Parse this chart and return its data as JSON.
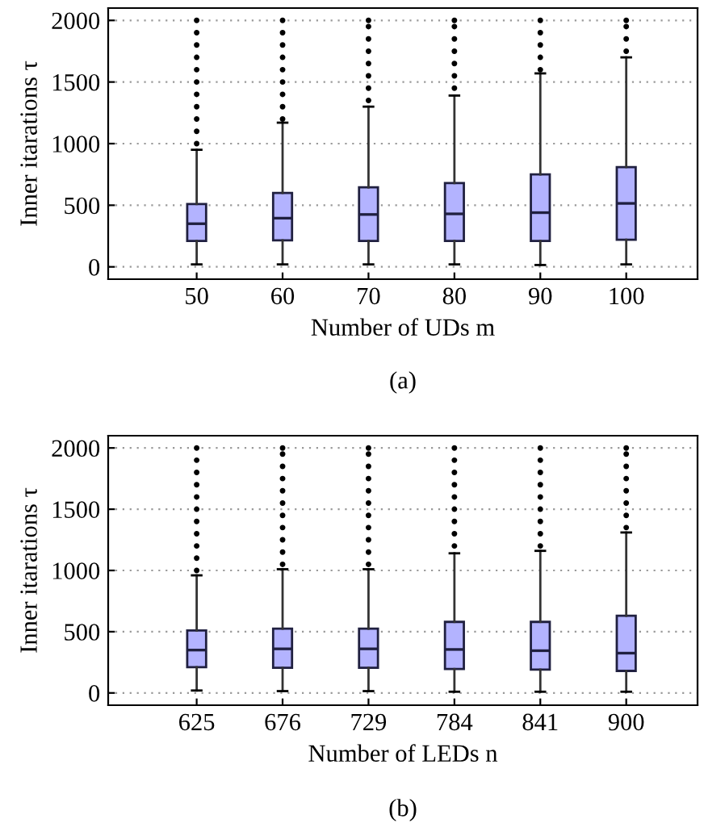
{
  "chart_data": [
    {
      "type": "box",
      "xlabel": "Number of UDs m",
      "ylabel": "Inner itarations τ",
      "annotations": [
        "(a)"
      ],
      "categories": [
        "50",
        "60",
        "70",
        "80",
        "90",
        "100"
      ],
      "color": "#b3b3ff",
      "ylim": [
        -100,
        2100
      ],
      "yticks": [
        0,
        500,
        1000,
        1500,
        2000
      ],
      "grid": "y",
      "boxes": [
        {
          "low": 20,
          "q1": 210,
          "median": 350,
          "q3": 510,
          "high": 950,
          "outliers": [
            1000,
            1100,
            1200,
            1300,
            1400,
            1500,
            1600,
            1700,
            1800,
            1900,
            2000
          ]
        },
        {
          "low": 20,
          "q1": 215,
          "median": 395,
          "q3": 600,
          "high": 1170,
          "outliers": [
            1200,
            1300,
            1400,
            1500,
            1600,
            1700,
            1800,
            1900,
            2000
          ]
        },
        {
          "low": 20,
          "q1": 210,
          "median": 425,
          "q3": 645,
          "high": 1300,
          "outliers": [
            1350,
            1450,
            1550,
            1650,
            1750,
            1850,
            1950,
            2000
          ]
        },
        {
          "low": 20,
          "q1": 210,
          "median": 430,
          "q3": 680,
          "high": 1390,
          "outliers": [
            1450,
            1550,
            1650,
            1750,
            1850,
            1950,
            2000
          ]
        },
        {
          "low": 15,
          "q1": 210,
          "median": 440,
          "q3": 750,
          "high": 1570,
          "outliers": [
            1600,
            1700,
            1800,
            1900,
            2000
          ]
        },
        {
          "low": 20,
          "q1": 220,
          "median": 515,
          "q3": 810,
          "high": 1700,
          "outliers": [
            1750,
            1850,
            1950,
            2000
          ]
        }
      ]
    },
    {
      "type": "box",
      "xlabel": "Number of LEDs n",
      "ylabel": "Inner itarations τ",
      "annotations": [
        "(b)"
      ],
      "categories": [
        "625",
        "676",
        "729",
        "784",
        "841",
        "900"
      ],
      "color": "#b3b3ff",
      "ylim": [
        -100,
        2100
      ],
      "yticks": [
        0,
        500,
        1000,
        1500,
        2000
      ],
      "grid": "y",
      "boxes": [
        {
          "low": 20,
          "q1": 210,
          "median": 350,
          "q3": 510,
          "high": 960,
          "outliers": [
            1000,
            1100,
            1200,
            1300,
            1400,
            1500,
            1600,
            1700,
            1800,
            1900,
            2000
          ]
        },
        {
          "low": 15,
          "q1": 205,
          "median": 360,
          "q3": 525,
          "high": 1010,
          "outliers": [
            1050,
            1150,
            1250,
            1350,
            1450,
            1550,
            1650,
            1750,
            1850,
            1950,
            2000
          ]
        },
        {
          "low": 15,
          "q1": 205,
          "median": 360,
          "q3": 525,
          "high": 1010,
          "outliers": [
            1050,
            1150,
            1250,
            1350,
            1450,
            1550,
            1650,
            1750,
            1850,
            1950,
            2000
          ]
        },
        {
          "low": 10,
          "q1": 195,
          "median": 355,
          "q3": 580,
          "high": 1140,
          "outliers": [
            1200,
            1300,
            1400,
            1500,
            1600,
            1700,
            1800,
            1900,
            2000
          ]
        },
        {
          "low": 10,
          "q1": 190,
          "median": 345,
          "q3": 580,
          "high": 1160,
          "outliers": [
            1200,
            1300,
            1400,
            1500,
            1600,
            1700,
            1800,
            1900,
            2000
          ]
        },
        {
          "low": 10,
          "q1": 180,
          "median": 325,
          "q3": 630,
          "high": 1310,
          "outliers": [
            1350,
            1450,
            1550,
            1650,
            1750,
            1850,
            1950,
            2000
          ]
        }
      ]
    }
  ]
}
